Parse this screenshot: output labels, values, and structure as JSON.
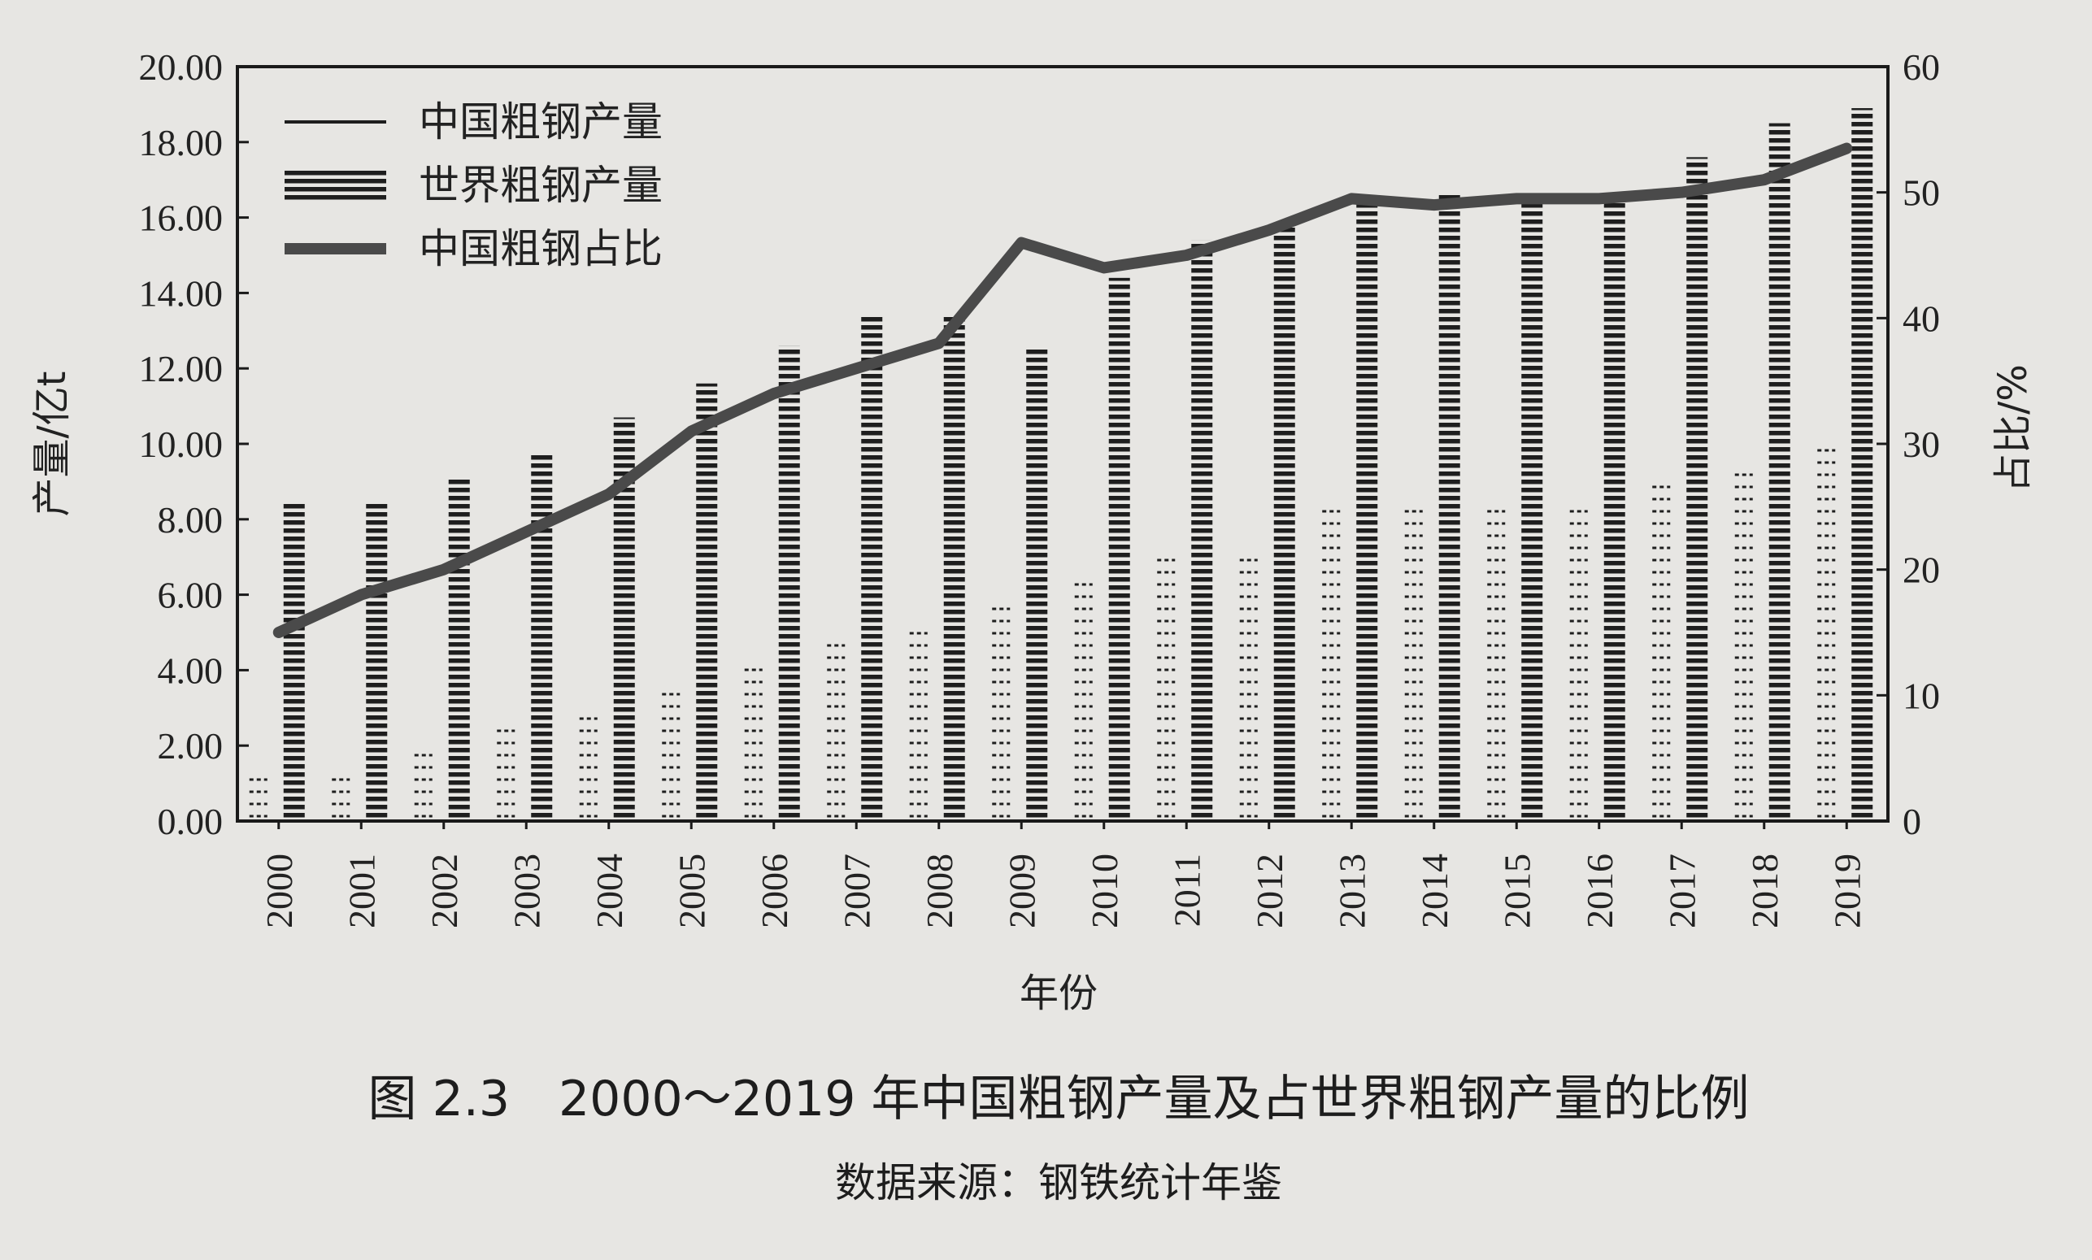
{
  "chart_data": {
    "type": "bar",
    "categories": [
      "2000",
      "2001",
      "2002",
      "2003",
      "2004",
      "2005",
      "2006",
      "2007",
      "2008",
      "2009",
      "2010",
      "2011",
      "2012",
      "2013",
      "2014",
      "2015",
      "2016",
      "2017",
      "2018",
      "2019"
    ],
    "series": [
      {
        "name": "中国粗钢产量",
        "kind": "bar",
        "axis": "left",
        "values": [
          1.2,
          1.2,
          1.8,
          2.4,
          2.8,
          3.5,
          4.2,
          4.8,
          5.3,
          5.9,
          6.5,
          7.1,
          7.1,
          8.3,
          8.3,
          8.3,
          8.3,
          8.9,
          9.5,
          10.0
        ]
      },
      {
        "name": "世界粗钢产量",
        "kind": "bar",
        "axis": "left",
        "values": [
          8.5,
          8.5,
          9.1,
          9.7,
          10.7,
          11.6,
          12.6,
          13.4,
          13.4,
          12.5,
          14.4,
          15.4,
          15.8,
          16.6,
          16.6,
          16.5,
          16.6,
          17.6,
          18.5,
          18.9
        ]
      },
      {
        "name": "中国粗钢占比",
        "kind": "line",
        "axis": "right",
        "values": [
          15,
          18,
          20,
          23,
          26,
          31,
          34,
          36,
          38,
          46,
          44,
          45,
          47,
          49.5,
          49,
          49.5,
          49.5,
          50,
          51,
          53.5
        ]
      }
    ],
    "y_left": {
      "label": "产量/亿t",
      "range": [
        0,
        20
      ],
      "ticks": [
        "0.00",
        "2.00",
        "4.00",
        "6.00",
        "8.00",
        "10.00",
        "12.00",
        "14.00",
        "16.00",
        "18.00",
        "20.00"
      ]
    },
    "y_right": {
      "label": "占比/%",
      "range": [
        0,
        60
      ],
      "ticks": [
        "0",
        "10",
        "20",
        "30",
        "40",
        "50",
        "60"
      ]
    },
    "xlabel": "年份",
    "legend_position": "top-left",
    "grid": false
  },
  "caption": {
    "title": "图 2.3　2000～2019 年中国粗钢产量及占世界粗钢产量的比例",
    "source": "数据来源：钢铁统计年鉴"
  },
  "colors": {
    "bar": "#1e1e1e",
    "line": "#4a4a4a",
    "axis": "#1a1a1a",
    "background": "#e7e6e3"
  }
}
